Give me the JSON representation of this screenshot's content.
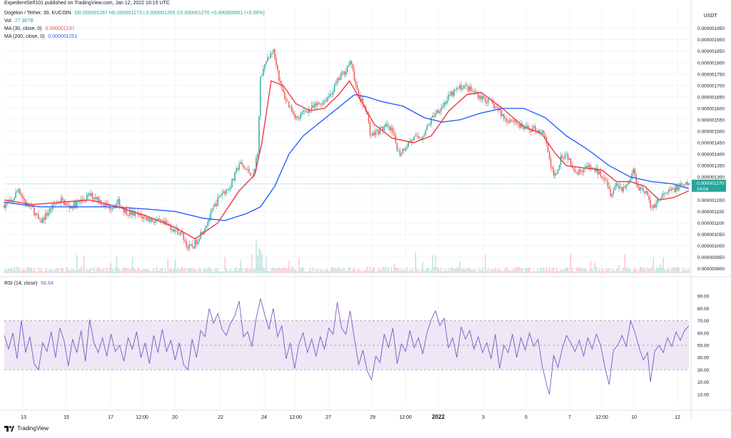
{
  "attribution": "ExpedientSelf101 published on TradingView.com, Jan 12, 2022 10:15 UTC",
  "legend": {
    "symbol": "Dogelon / Tether, 30, KUCOIN",
    "ohlc": "O0.000001267 H0.000001273 L0.000001265 C0.000001270 +0.000000001 (+0.08%)",
    "vol_label": "Vol",
    "vol_value": "27.367B",
    "ma30_label": "MA (30, close, 0)",
    "ma30_value": "0.000001237",
    "ma200_label": "MA (200, close, 0)",
    "ma200_value": "0.000001251",
    "rsi_label": "RSI (14, close)",
    "rsi_value": "66.64"
  },
  "branding": "TradingView",
  "colors": {
    "up": "#26a69a",
    "down": "#ef5350",
    "ma30": "#f23645",
    "ma200": "#2962ff",
    "rsi": "#7e57c2",
    "rsi_band": "#ede7f6",
    "grid": "#f0f3fa",
    "text": "#131722"
  },
  "chart_data": {
    "type": "candlestick",
    "currency": "USDT",
    "last_price": "0.000001270",
    "countdown": "14:04",
    "price_axis": {
      "ylim": [
        8.8e-07,
        1.98e-06
      ],
      "ticks": [
        "0.000001950",
        "0.000001900",
        "0.000001850",
        "0.000001800",
        "0.000001750",
        "0.000001700",
        "0.000001650",
        "0.000001600",
        "0.000001550",
        "0.000001500",
        "0.000001450",
        "0.000001400",
        "0.000001350",
        "0.000001300",
        "0.000001250",
        "0.000001200",
        "0.000001150",
        "0.000001100",
        "0.000001050",
        "0.000001000",
        "0.000000950",
        "0.000000900"
      ]
    },
    "rsi_axis": {
      "ylim": [
        0,
        100
      ],
      "ticks": [
        "90.00",
        "80.00",
        "70.00",
        "60.00",
        "50.00",
        "40.00",
        "30.00",
        "20.00",
        "10.00"
      ],
      "band": [
        30,
        70
      ]
    },
    "x_ticks": [
      "13",
      "15",
      "17",
      "12:00",
      "20",
      "22",
      "24",
      "12:00",
      "27",
      "29",
      "12:00",
      "2022",
      "3",
      "5",
      "7",
      "12:00",
      "10",
      "12"
    ],
    "price_path": [
      [
        0,
        1.18
      ],
      [
        10,
        1.19
      ],
      [
        20,
        1.25
      ],
      [
        30,
        1.18
      ],
      [
        40,
        1.16
      ],
      [
        50,
        1.1
      ],
      [
        60,
        1.14
      ],
      [
        70,
        1.18
      ],
      [
        80,
        1.2
      ],
      [
        90,
        1.17
      ],
      [
        100,
        1.18
      ],
      [
        110,
        1.2
      ],
      [
        120,
        1.22
      ],
      [
        130,
        1.21
      ],
      [
        140,
        1.18
      ],
      [
        150,
        1.17
      ],
      [
        160,
        1.19
      ],
      [
        170,
        1.15
      ],
      [
        180,
        1.14
      ],
      [
        190,
        1.13
      ],
      [
        200,
        1.12
      ],
      [
        210,
        1.11
      ],
      [
        220,
        1.1
      ],
      [
        230,
        1.09
      ],
      [
        240,
        1.07
      ],
      [
        250,
        1.05
      ],
      [
        258,
        0.99
      ],
      [
        266,
        1.0
      ],
      [
        275,
        1.05
      ],
      [
        285,
        1.1
      ],
      [
        295,
        1.17
      ],
      [
        305,
        1.23
      ],
      [
        315,
        1.25
      ],
      [
        322,
        1.29
      ],
      [
        330,
        1.36
      ],
      [
        340,
        1.33
      ],
      [
        350,
        1.31
      ],
      [
        356,
        1.42
      ],
      [
        360,
        1.73
      ],
      [
        366,
        1.79
      ],
      [
        372,
        1.82
      ],
      [
        377,
        1.86
      ],
      [
        382,
        1.8
      ],
      [
        388,
        1.7
      ],
      [
        395,
        1.64
      ],
      [
        403,
        1.6
      ],
      [
        412,
        1.55
      ],
      [
        422,
        1.59
      ],
      [
        432,
        1.6
      ],
      [
        442,
        1.62
      ],
      [
        452,
        1.64
      ],
      [
        462,
        1.68
      ],
      [
        470,
        1.73
      ],
      [
        478,
        1.76
      ],
      [
        485,
        1.8
      ],
      [
        490,
        1.77
      ],
      [
        495,
        1.68
      ],
      [
        500,
        1.64
      ],
      [
        508,
        1.6
      ],
      [
        515,
        1.48
      ],
      [
        525,
        1.5
      ],
      [
        535,
        1.52
      ],
      [
        545,
        1.5
      ],
      [
        555,
        1.4
      ],
      [
        565,
        1.44
      ],
      [
        575,
        1.47
      ],
      [
        585,
        1.47
      ],
      [
        595,
        1.52
      ],
      [
        605,
        1.58
      ],
      [
        615,
        1.61
      ],
      [
        625,
        1.65
      ],
      [
        635,
        1.68
      ],
      [
        645,
        1.7
      ],
      [
        655,
        1.68
      ],
      [
        665,
        1.66
      ],
      [
        675,
        1.64
      ],
      [
        685,
        1.62
      ],
      [
        695,
        1.59
      ],
      [
        705,
        1.55
      ],
      [
        715,
        1.55
      ],
      [
        725,
        1.52
      ],
      [
        735,
        1.51
      ],
      [
        745,
        1.51
      ],
      [
        755,
        1.5
      ],
      [
        762,
        1.45
      ],
      [
        768,
        1.33
      ],
      [
        775,
        1.31
      ],
      [
        782,
        1.39
      ],
      [
        790,
        1.4
      ],
      [
        797,
        1.36
      ],
      [
        805,
        1.32
      ],
      [
        815,
        1.34
      ],
      [
        825,
        1.34
      ],
      [
        835,
        1.32
      ],
      [
        845,
        1.3
      ],
      [
        852,
        1.23
      ],
      [
        860,
        1.27
      ],
      [
        868,
        1.25
      ],
      [
        876,
        1.27
      ],
      [
        884,
        1.33
      ],
      [
        890,
        1.26
      ],
      [
        896,
        1.25
      ],
      [
        903,
        1.23
      ],
      [
        908,
        1.16
      ],
      [
        914,
        1.18
      ],
      [
        922,
        1.21
      ],
      [
        932,
        1.23
      ],
      [
        942,
        1.25
      ],
      [
        952,
        1.26
      ],
      [
        962,
        1.27
      ]
    ],
    "ma30_path": [
      [
        0,
        1.2
      ],
      [
        40,
        1.18
      ],
      [
        80,
        1.19
      ],
      [
        120,
        1.2
      ],
      [
        160,
        1.17
      ],
      [
        200,
        1.13
      ],
      [
        240,
        1.08
      ],
      [
        268,
        1.03
      ],
      [
        300,
        1.1
      ],
      [
        330,
        1.24
      ],
      [
        352,
        1.31
      ],
      [
        362,
        1.45
      ],
      [
        375,
        1.72
      ],
      [
        392,
        1.7
      ],
      [
        410,
        1.62
      ],
      [
        430,
        1.59
      ],
      [
        450,
        1.6
      ],
      [
        470,
        1.66
      ],
      [
        485,
        1.72
      ],
      [
        500,
        1.64
      ],
      [
        520,
        1.53
      ],
      [
        545,
        1.47
      ],
      [
        575,
        1.45
      ],
      [
        600,
        1.48
      ],
      [
        625,
        1.59
      ],
      [
        650,
        1.66
      ],
      [
        670,
        1.67
      ],
      [
        700,
        1.6
      ],
      [
        730,
        1.52
      ],
      [
        755,
        1.49
      ],
      [
        775,
        1.4
      ],
      [
        790,
        1.35
      ],
      [
        815,
        1.34
      ],
      [
        840,
        1.33
      ],
      [
        860,
        1.28
      ],
      [
        880,
        1.28
      ],
      [
        900,
        1.26
      ],
      [
        920,
        1.2
      ],
      [
        940,
        1.21
      ],
      [
        962,
        1.24
      ]
    ],
    "ma200_path": [
      [
        0,
        1.19
      ],
      [
        50,
        1.17
      ],
      [
        100,
        1.17
      ],
      [
        150,
        1.17
      ],
      [
        200,
        1.16
      ],
      [
        240,
        1.15
      ],
      [
        280,
        1.12
      ],
      [
        310,
        1.11
      ],
      [
        340,
        1.14
      ],
      [
        360,
        1.17
      ],
      [
        380,
        1.26
      ],
      [
        400,
        1.4
      ],
      [
        420,
        1.48
      ],
      [
        440,
        1.53
      ],
      [
        460,
        1.58
      ],
      [
        480,
        1.63
      ],
      [
        492,
        1.66
      ],
      [
        510,
        1.65
      ],
      [
        530,
        1.63
      ],
      [
        560,
        1.61
      ],
      [
        590,
        1.56
      ],
      [
        615,
        1.54
      ],
      [
        640,
        1.55
      ],
      [
        670,
        1.58
      ],
      [
        700,
        1.6
      ],
      [
        730,
        1.6
      ],
      [
        760,
        1.56
      ],
      [
        790,
        1.48
      ],
      [
        820,
        1.42
      ],
      [
        850,
        1.35
      ],
      [
        880,
        1.3
      ],
      [
        910,
        1.28
      ],
      [
        940,
        1.27
      ],
      [
        962,
        1.25
      ]
    ],
    "rsi_path": [
      [
        0,
        58
      ],
      [
        6,
        47
      ],
      [
        12,
        60
      ],
      [
        18,
        39
      ],
      [
        24,
        70
      ],
      [
        30,
        44
      ],
      [
        36,
        57
      ],
      [
        42,
        35
      ],
      [
        48,
        30
      ],
      [
        54,
        52
      ],
      [
        60,
        45
      ],
      [
        66,
        61
      ],
      [
        72,
        40
      ],
      [
        78,
        64
      ],
      [
        84,
        54
      ],
      [
        90,
        33
      ],
      [
        96,
        55
      ],
      [
        102,
        44
      ],
      [
        108,
        62
      ],
      [
        114,
        37
      ],
      [
        120,
        71
      ],
      [
        126,
        52
      ],
      [
        132,
        44
      ],
      [
        138,
        56
      ],
      [
        144,
        41
      ],
      [
        150,
        59
      ],
      [
        156,
        45
      ],
      [
        162,
        50
      ],
      [
        168,
        37
      ],
      [
        174,
        56
      ],
      [
        180,
        47
      ],
      [
        186,
        61
      ],
      [
        192,
        40
      ],
      [
        198,
        52
      ],
      [
        204,
        35
      ],
      [
        210,
        58
      ],
      [
        216,
        44
      ],
      [
        222,
        63
      ],
      [
        228,
        45
      ],
      [
        234,
        54
      ],
      [
        240,
        38
      ],
      [
        246,
        52
      ],
      [
        252,
        34
      ],
      [
        258,
        30
      ],
      [
        264,
        55
      ],
      [
        270,
        40
      ],
      [
        276,
        62
      ],
      [
        282,
        57
      ],
      [
        288,
        80
      ],
      [
        294,
        68
      ],
      [
        300,
        76
      ],
      [
        306,
        63
      ],
      [
        312,
        58
      ],
      [
        318,
        68
      ],
      [
        324,
        74
      ],
      [
        330,
        86
      ],
      [
        336,
        57
      ],
      [
        342,
        61
      ],
      [
        348,
        49
      ],
      [
        354,
        72
      ],
      [
        360,
        88
      ],
      [
        366,
        75
      ],
      [
        372,
        63
      ],
      [
        378,
        80
      ],
      [
        384,
        57
      ],
      [
        390,
        66
      ],
      [
        396,
        39
      ],
      [
        402,
        52
      ],
      [
        408,
        31
      ],
      [
        414,
        51
      ],
      [
        420,
        60
      ],
      [
        426,
        44
      ],
      [
        432,
        55
      ],
      [
        438,
        41
      ],
      [
        444,
        57
      ],
      [
        450,
        47
      ],
      [
        456,
        64
      ],
      [
        462,
        59
      ],
      [
        468,
        85
      ],
      [
        474,
        64
      ],
      [
        480,
        59
      ],
      [
        486,
        78
      ],
      [
        492,
        55
      ],
      [
        498,
        34
      ],
      [
        504,
        46
      ],
      [
        510,
        29
      ],
      [
        516,
        22
      ],
      [
        522,
        41
      ],
      [
        528,
        36
      ],
      [
        534,
        59
      ],
      [
        540,
        48
      ],
      [
        546,
        64
      ],
      [
        552,
        35
      ],
      [
        558,
        51
      ],
      [
        564,
        45
      ],
      [
        570,
        62
      ],
      [
        576,
        48
      ],
      [
        582,
        56
      ],
      [
        588,
        43
      ],
      [
        594,
        60
      ],
      [
        600,
        71
      ],
      [
        606,
        78
      ],
      [
        612,
        66
      ],
      [
        618,
        72
      ],
      [
        624,
        48
      ],
      [
        630,
        56
      ],
      [
        636,
        40
      ],
      [
        642,
        65
      ],
      [
        648,
        55
      ],
      [
        654,
        62
      ],
      [
        660,
        47
      ],
      [
        666,
        57
      ],
      [
        672,
        44
      ],
      [
        678,
        52
      ],
      [
        684,
        39
      ],
      [
        690,
        59
      ],
      [
        696,
        31
      ],
      [
        702,
        50
      ],
      [
        708,
        44
      ],
      [
        714,
        59
      ],
      [
        720,
        40
      ],
      [
        726,
        56
      ],
      [
        732,
        46
      ],
      [
        738,
        60
      ],
      [
        744,
        49
      ],
      [
        750,
        55
      ],
      [
        756,
        33
      ],
      [
        762,
        18
      ],
      [
        766,
        10
      ],
      [
        772,
        42
      ],
      [
        778,
        32
      ],
      [
        784,
        47
      ],
      [
        790,
        58
      ],
      [
        796,
        52
      ],
      [
        802,
        45
      ],
      [
        808,
        54
      ],
      [
        814,
        41
      ],
      [
        820,
        56
      ],
      [
        826,
        47
      ],
      [
        832,
        59
      ],
      [
        838,
        50
      ],
      [
        844,
        32
      ],
      [
        850,
        18
      ],
      [
        856,
        46
      ],
      [
        862,
        50
      ],
      [
        868,
        58
      ],
      [
        874,
        49
      ],
      [
        880,
        70
      ],
      [
        886,
        61
      ],
      [
        892,
        48
      ],
      [
        898,
        38
      ],
      [
        904,
        44
      ],
      [
        908,
        20
      ],
      [
        914,
        45
      ],
      [
        920,
        50
      ],
      [
        926,
        44
      ],
      [
        932,
        56
      ],
      [
        938,
        49
      ],
      [
        944,
        61
      ],
      [
        950,
        54
      ],
      [
        956,
        62
      ],
      [
        962,
        66
      ]
    ]
  }
}
